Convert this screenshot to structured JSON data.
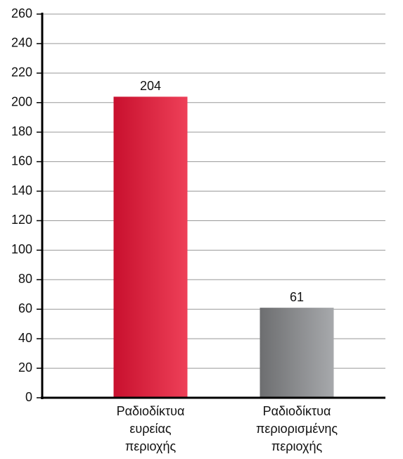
{
  "chart_data": {
    "type": "bar",
    "categories": [
      "Ραδιοδίκτυα ευρείας περιοχής",
      "Ραδιοδίκτυα περιορισμένης περιοχής"
    ],
    "values": [
      204,
      61
    ],
    "colors": [
      [
        "#c8102e",
        "#ee4058"
      ],
      [
        "#6d6e70",
        "#a7a9ac"
      ]
    ],
    "ylim": [
      0,
      260
    ],
    "yticks": [
      0,
      20,
      40,
      60,
      80,
      100,
      120,
      140,
      160,
      180,
      200,
      220,
      240,
      260
    ],
    "grid": true
  }
}
